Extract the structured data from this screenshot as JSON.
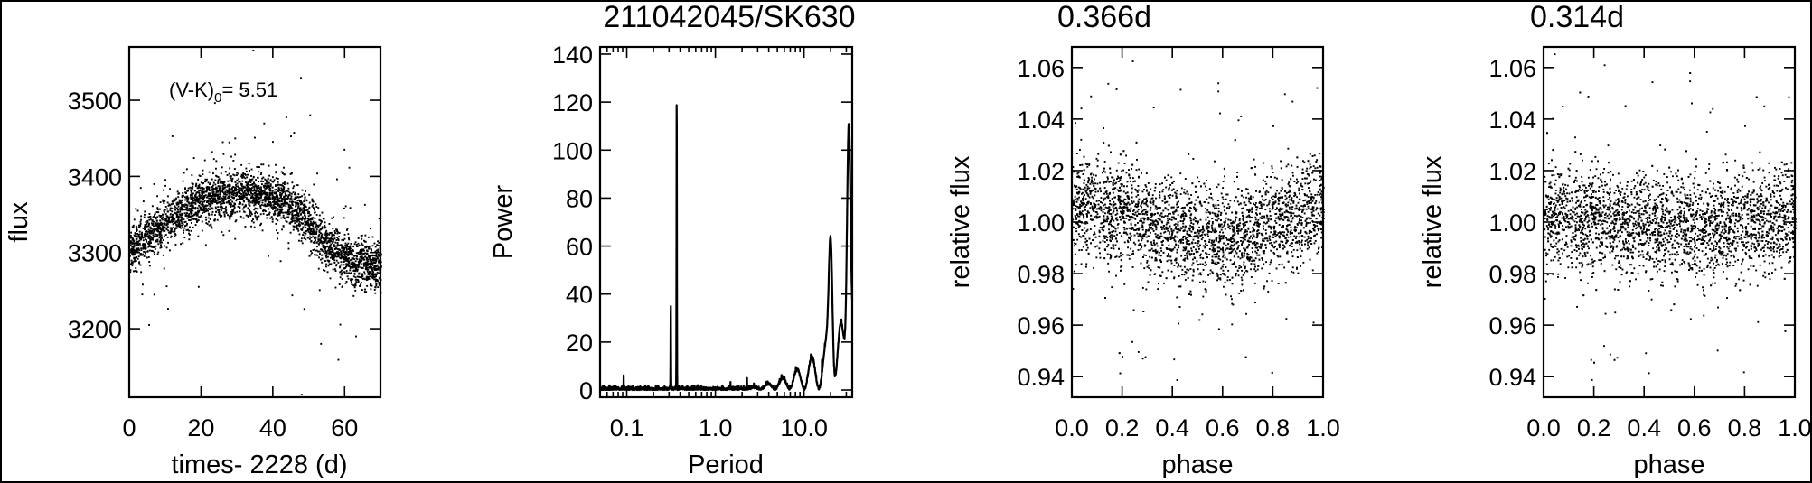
{
  "chart_data": [
    {
      "type": "scatter",
      "title": "",
      "xlabel": "times- 2228 (d)",
      "ylabel": "flux",
      "xlim": [
        0,
        70
      ],
      "ylim": [
        3110,
        3570
      ],
      "xticks": [
        0,
        20,
        40,
        60
      ],
      "yticks": [
        3200,
        3300,
        3400,
        3500
      ],
      "xtick_labels": [
        "0",
        "20",
        "40",
        "60"
      ],
      "ytick_labels": [
        "3200",
        "3300",
        "3400",
        "3500"
      ],
      "annotation": {
        "main": "(V-K)",
        "sub": "0",
        "rest": "= 5.51"
      },
      "trend": {
        "x": [
          0,
          5,
          10,
          15,
          20,
          25,
          30,
          35,
          40,
          45,
          50,
          55,
          60,
          65,
          70
        ],
        "y": [
          3305,
          3320,
          3340,
          3357,
          3368,
          3375,
          3378,
          3377,
          3372,
          3362,
          3340,
          3312,
          3295,
          3285,
          3280
        ]
      },
      "n_points": 3300,
      "grid": false
    },
    {
      "type": "line",
      "title": "211042045/SK630",
      "xlabel": "Period",
      "ylabel": "Power",
      "xscale": "log",
      "xlim": [
        0.05,
        35
      ],
      "ylim": [
        -3,
        143
      ],
      "xticks": [
        0.1,
        1.0,
        10.0
      ],
      "xtick_labels": [
        "0.1",
        "1.0",
        "10.0"
      ],
      "yticks": [
        0,
        20,
        40,
        60,
        80,
        100,
        120,
        140
      ],
      "ytick_labels": [
        "0",
        "20",
        "40",
        "60",
        "80",
        "100",
        "120",
        "140"
      ],
      "peaks": [
        {
          "period": 0.314,
          "power": 36
        },
        {
          "period": 0.366,
          "power": 127
        },
        {
          "period": 20.0,
          "power": 56
        },
        {
          "period": 32.0,
          "power": 110
        }
      ],
      "grid": false
    },
    {
      "type": "scatter",
      "title": "0.366d",
      "xlabel": "phase",
      "ylabel": "relative flux",
      "xlim": [
        0.0,
        1.0
      ],
      "ylim": [
        0.932,
        1.068
      ],
      "xticks": [
        0.0,
        0.2,
        0.4,
        0.6,
        0.8,
        1.0
      ],
      "xtick_labels": [
        "0.0",
        "0.2",
        "0.4",
        "0.6",
        "0.8",
        "1.0"
      ],
      "yticks": [
        0.94,
        0.96,
        0.98,
        1.0,
        1.02,
        1.04,
        1.06
      ],
      "ytick_labels": [
        "0.94",
        "0.96",
        "0.98",
        "1.00",
        "1.02",
        "1.04",
        "1.06"
      ],
      "period_d": 0.366,
      "amplitude": 0.006,
      "n_points": 3300,
      "grid": false
    },
    {
      "type": "scatter",
      "title": "0.314d",
      "xlabel": "phase",
      "ylabel": "relative flux",
      "xlim": [
        0.0,
        1.0
      ],
      "ylim": [
        0.932,
        1.068
      ],
      "xticks": [
        0.0,
        0.2,
        0.4,
        0.6,
        0.8,
        1.0
      ],
      "xtick_labels": [
        "0.0",
        "0.2",
        "0.4",
        "0.6",
        "0.8",
        "1.0"
      ],
      "yticks": [
        0.94,
        0.96,
        0.98,
        1.0,
        1.02,
        1.04,
        1.06
      ],
      "ytick_labels": [
        "0.94",
        "0.96",
        "0.98",
        "1.00",
        "1.02",
        "1.04",
        "1.06"
      ],
      "period_d": 0.314,
      "amplitude": 0.002,
      "n_points": 3300,
      "grid": false
    }
  ]
}
